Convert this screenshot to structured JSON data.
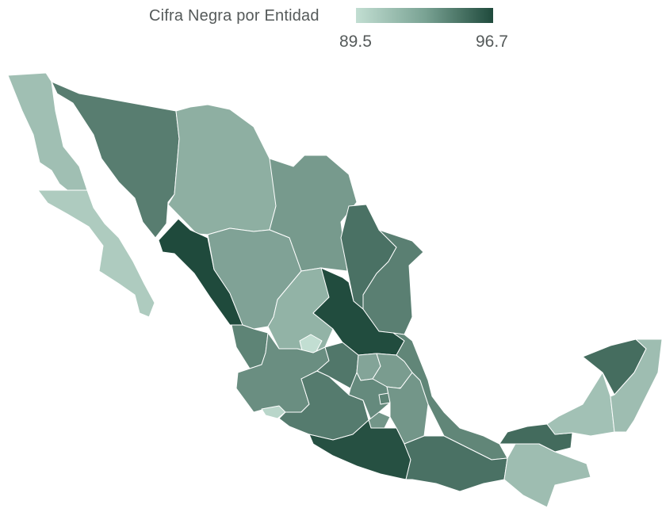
{
  "legend": {
    "title": "Cifra Negra por Entidad",
    "min_label": "89.5",
    "max_label": "96.7",
    "min_value": 89.5,
    "max_value": 96.7,
    "color_low": "#c2ded2",
    "color_high": "#1f4a3c"
  },
  "map": {
    "region": "Mexico",
    "states": [
      {
        "name": "Baja California",
        "value": 91.0
      },
      {
        "name": "Baja California Sur",
        "value": 90.4
      },
      {
        "name": "Sonora",
        "value": 94.2
      },
      {
        "name": "Chihuahua",
        "value": 91.8
      },
      {
        "name": "Coahuila",
        "value": 92.8
      },
      {
        "name": "Nuevo León",
        "value": 94.8
      },
      {
        "name": "Tamaulipas",
        "value": 94.1
      },
      {
        "name": "Sinaloa",
        "value": 96.7
      },
      {
        "name": "Durango",
        "value": 92.4
      },
      {
        "name": "Zacatecas",
        "value": 91.6
      },
      {
        "name": "San Luis Potosí",
        "value": 96.6
      },
      {
        "name": "Aguascalientes",
        "value": 89.5
      },
      {
        "name": "Nayarit",
        "value": 93.9
      },
      {
        "name": "Jalisco",
        "value": 93.4
      },
      {
        "name": "Colima",
        "value": 89.9
      },
      {
        "name": "Michoacán",
        "value": 94.3
      },
      {
        "name": "Guanajuato",
        "value": 94.5
      },
      {
        "name": "Querétaro",
        "value": 92.3
      },
      {
        "name": "Hidalgo",
        "value": 92.7
      },
      {
        "name": "México",
        "value": 93.6
      },
      {
        "name": "Ciudad de México",
        "value": 93.9
      },
      {
        "name": "Morelos",
        "value": 93.0
      },
      {
        "name": "Tlaxcala",
        "value": 92.1
      },
      {
        "name": "Puebla",
        "value": 93.0
      },
      {
        "name": "Guerrero",
        "value": 96.4
      },
      {
        "name": "Veracruz",
        "value": 93.8
      },
      {
        "name": "Oaxaca",
        "value": 94.8
      },
      {
        "name": "Chiapas",
        "value": 91.1
      },
      {
        "name": "Tabasco",
        "value": 95.1
      },
      {
        "name": "Campeche",
        "value": 90.9
      },
      {
        "name": "Yucatán",
        "value": 95.0
      },
      {
        "name": "Quintana Roo",
        "value": 91.1
      }
    ]
  }
}
